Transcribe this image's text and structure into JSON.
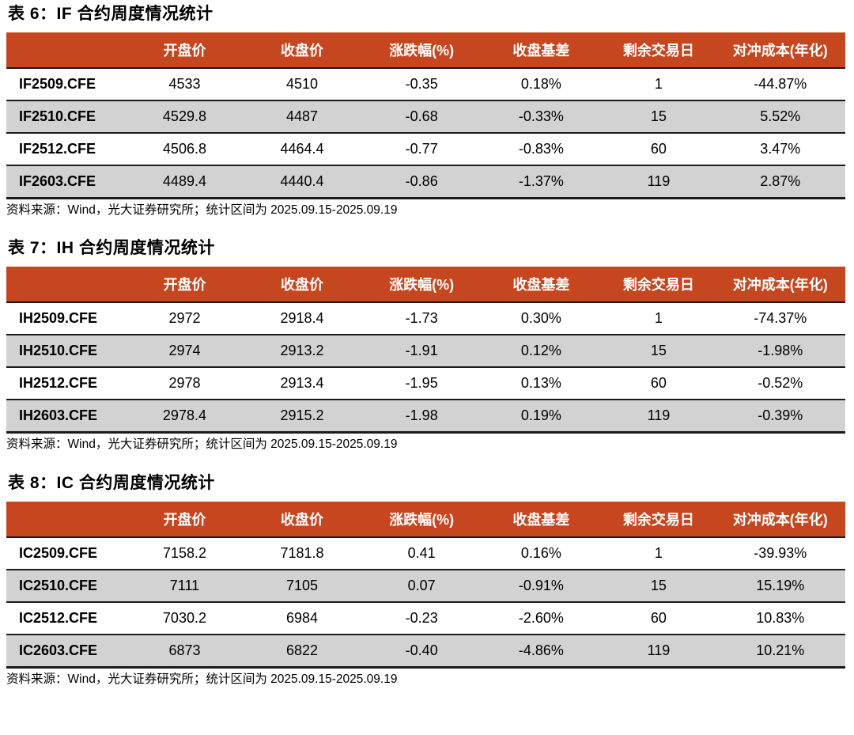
{
  "colors": {
    "accent": "#C5461F",
    "stripe": "#D2D2D2",
    "border": "#1A1A1A",
    "header_text": "#FFFFFF"
  },
  "tables": [
    {
      "title": "表 6：IF 合约周度情况统计",
      "columns": [
        "",
        "开盘价",
        "收盘价",
        "涨跌幅(%)",
        "收盘基差",
        "剩余交易日",
        "对冲成本(年化)"
      ],
      "rows": [
        [
          "IF2509.CFE",
          "4533",
          "4510",
          "-0.35",
          "0.18%",
          "1",
          "-44.87%"
        ],
        [
          "IF2510.CFE",
          "4529.8",
          "4487",
          "-0.68",
          "-0.33%",
          "15",
          "5.52%"
        ],
        [
          "IF2512.CFE",
          "4506.8",
          "4464.4",
          "-0.77",
          "-0.83%",
          "60",
          "3.47%"
        ],
        [
          "IF2603.CFE",
          "4489.4",
          "4440.4",
          "-0.86",
          "-1.37%",
          "119",
          "2.87%"
        ]
      ],
      "source": "资料来源：Wind，光大证券研究所；统计区间为 2025.09.15-2025.09.19"
    },
    {
      "title": "表 7：IH 合约周度情况统计",
      "columns": [
        "",
        "开盘价",
        "收盘价",
        "涨跌幅(%)",
        "收盘基差",
        "剩余交易日",
        "对冲成本(年化)"
      ],
      "rows": [
        [
          "IH2509.CFE",
          "2972",
          "2918.4",
          "-1.73",
          "0.30%",
          "1",
          "-74.37%"
        ],
        [
          "IH2510.CFE",
          "2974",
          "2913.2",
          "-1.91",
          "0.12%",
          "15",
          "-1.98%"
        ],
        [
          "IH2512.CFE",
          "2978",
          "2913.4",
          "-1.95",
          "0.13%",
          "60",
          "-0.52%"
        ],
        [
          "IH2603.CFE",
          "2978.4",
          "2915.2",
          "-1.98",
          "0.19%",
          "119",
          "-0.39%"
        ]
      ],
      "source": "资料来源：Wind，光大证券研究所；统计区间为 2025.09.15-2025.09.19"
    },
    {
      "title": "表 8：IC 合约周度情况统计",
      "columns": [
        "",
        "开盘价",
        "收盘价",
        "涨跌幅(%)",
        "收盘基差",
        "剩余交易日",
        "对冲成本(年化)"
      ],
      "rows": [
        [
          "IC2509.CFE",
          "7158.2",
          "7181.8",
          "0.41",
          "0.16%",
          "1",
          "-39.93%"
        ],
        [
          "IC2510.CFE",
          "7111",
          "7105",
          "0.07",
          "-0.91%",
          "15",
          "15.19%"
        ],
        [
          "IC2512.CFE",
          "7030.2",
          "6984",
          "-0.23",
          "-2.60%",
          "60",
          "10.83%"
        ],
        [
          "IC2603.CFE",
          "6873",
          "6822",
          "-0.40",
          "-4.86%",
          "119",
          "10.21%"
        ]
      ],
      "source": "资料来源：Wind，光大证券研究所；统计区间为 2025.09.15-2025.09.19"
    }
  ]
}
